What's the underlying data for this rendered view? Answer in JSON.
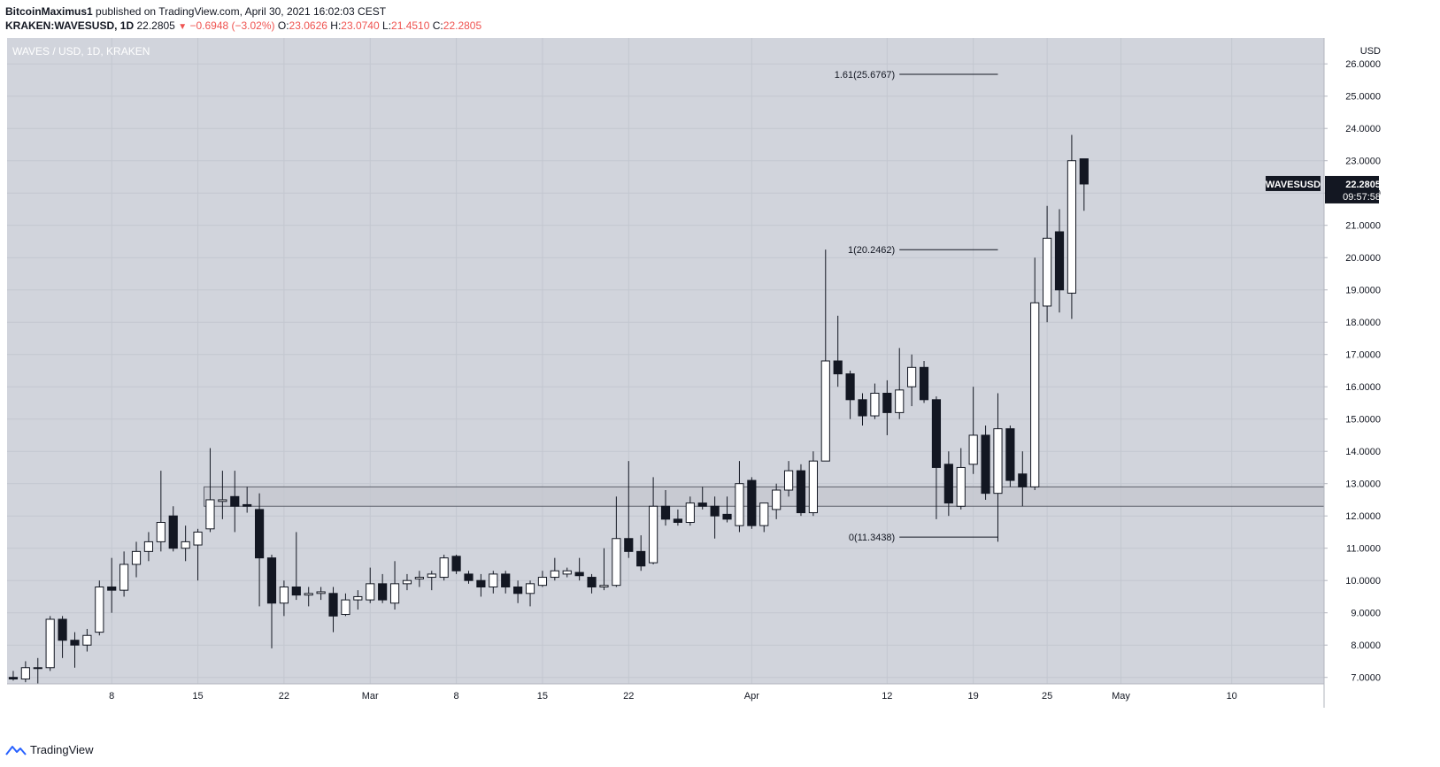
{
  "header": {
    "author": "BitcoinMaximus1",
    "published": "published on TradingView.com, April 30, 2021 16:02:03 CEST",
    "symbol": "KRAKEN:WAVESUSD, 1D",
    "last": "22.2805",
    "change": "−0.6948 (−3.02%)",
    "o_label": "O:",
    "o_value": "23.0626",
    "h_label": "H:",
    "h_value": "23.0740",
    "l_label": "L:",
    "l_value": "21.4510",
    "c_label": "C:",
    "c_value": "22.2805"
  },
  "footer": {
    "brand": "TradingView",
    "icon": "tradingview-logo-icon"
  },
  "colors": {
    "plot_bg": "#d1d4dc",
    "grid": "#c3c7d0",
    "up_body": "#ffffff",
    "down_body": "#131722",
    "wick": "#131722",
    "zone_fill": "#c4c7cf",
    "zone_stroke": "#5d606b",
    "label_bg": "#131722"
  },
  "chart_data": {
    "type": "candlestick",
    "title": "WAVES / USD, 1D, KRAKEN",
    "currency": "USD",
    "price_label": "WAVESUSD",
    "last_price": "22.2805",
    "countdown": "09:57:58",
    "ylim": [
      6.8,
      26.8
    ],
    "y_ticks": [
      7,
      8,
      9,
      10,
      11,
      12,
      13,
      14,
      15,
      16,
      17,
      18,
      19,
      20,
      21,
      22,
      23,
      24,
      25,
      26
    ],
    "y_tick_labels": [
      "7.0000",
      "8.0000",
      "9.0000",
      "10.0000",
      "11.0000",
      "12.0000",
      "13.0000",
      "14.0000",
      "15.0000",
      "16.0000",
      "17.0000",
      "18.0000",
      "19.0000",
      "20.0000",
      "21.0000",
      "22.0000",
      "23.0000",
      "24.0000",
      "25.0000",
      "26.0000"
    ],
    "xlim": [
      "2021-01-31",
      "2021-05-18"
    ],
    "x_ticks": [
      {
        "date": "2021-02-08",
        "label": "8"
      },
      {
        "date": "2021-02-15",
        "label": "15"
      },
      {
        "date": "2021-02-22",
        "label": "22"
      },
      {
        "date": "2021-03-01",
        "label": "Mar"
      },
      {
        "date": "2021-03-08",
        "label": "8"
      },
      {
        "date": "2021-03-15",
        "label": "15"
      },
      {
        "date": "2021-03-22",
        "label": "22"
      },
      {
        "date": "2021-04-01",
        "label": "Apr"
      },
      {
        "date": "2021-04-12",
        "label": "12"
      },
      {
        "date": "2021-04-19",
        "label": "19"
      },
      {
        "date": "2021-04-25",
        "label": "25"
      },
      {
        "date": "2021-05-01",
        "label": "May"
      },
      {
        "date": "2021-05-10",
        "label": "10"
      }
    ],
    "candles": [
      {
        "date": "2021-01-31",
        "open": 7.0,
        "high": 7.2,
        "low": 6.9,
        "close": 6.95
      },
      {
        "date": "2021-02-01",
        "open": 6.95,
        "high": 7.5,
        "low": 6.85,
        "close": 7.3
      },
      {
        "date": "2021-02-02",
        "open": 7.3,
        "high": 7.6,
        "low": 6.8,
        "close": 7.3
      },
      {
        "date": "2021-02-03",
        "open": 7.3,
        "high": 8.9,
        "low": 7.2,
        "close": 8.8
      },
      {
        "date": "2021-02-04",
        "open": 8.8,
        "high": 8.9,
        "low": 7.6,
        "close": 8.15
      },
      {
        "date": "2021-02-05",
        "open": 8.15,
        "high": 8.4,
        "low": 7.3,
        "close": 8.0
      },
      {
        "date": "2021-02-06",
        "open": 8.0,
        "high": 8.5,
        "low": 7.8,
        "close": 8.3
      },
      {
        "date": "2021-02-07",
        "open": 8.4,
        "high": 10.0,
        "low": 8.3,
        "close": 9.8
      },
      {
        "date": "2021-02-08",
        "open": 9.8,
        "high": 10.7,
        "low": 9.0,
        "close": 9.7
      },
      {
        "date": "2021-02-09",
        "open": 9.7,
        "high": 10.9,
        "low": 9.5,
        "close": 10.5
      },
      {
        "date": "2021-02-10",
        "open": 10.5,
        "high": 11.2,
        "low": 10.1,
        "close": 10.9
      },
      {
        "date": "2021-02-11",
        "open": 10.9,
        "high": 11.5,
        "low": 10.6,
        "close": 11.2
      },
      {
        "date": "2021-02-12",
        "open": 11.2,
        "high": 13.4,
        "low": 10.9,
        "close": 11.8
      },
      {
        "date": "2021-02-13",
        "open": 12.0,
        "high": 12.3,
        "low": 10.9,
        "close": 11.0
      },
      {
        "date": "2021-02-14",
        "open": 11.0,
        "high": 11.7,
        "low": 10.6,
        "close": 11.2
      },
      {
        "date": "2021-02-15",
        "open": 11.1,
        "high": 11.6,
        "low": 10.0,
        "close": 11.5
      },
      {
        "date": "2021-02-16",
        "open": 11.6,
        "high": 14.1,
        "low": 11.5,
        "close": 12.5
      },
      {
        "date": "2021-02-17",
        "open": 12.45,
        "high": 13.4,
        "low": 11.9,
        "close": 12.5
      },
      {
        "date": "2021-02-18",
        "open": 12.6,
        "high": 13.4,
        "low": 11.5,
        "close": 12.3
      },
      {
        "date": "2021-02-19",
        "open": 12.35,
        "high": 12.9,
        "low": 12.1,
        "close": 12.3
      },
      {
        "date": "2021-02-20",
        "open": 12.2,
        "high": 12.7,
        "low": 9.2,
        "close": 10.7
      },
      {
        "date": "2021-02-21",
        "open": 10.7,
        "high": 10.8,
        "low": 7.9,
        "close": 9.3
      },
      {
        "date": "2021-02-22",
        "open": 9.3,
        "high": 10.0,
        "low": 8.9,
        "close": 9.8
      },
      {
        "date": "2021-02-23",
        "open": 9.8,
        "high": 11.5,
        "low": 9.4,
        "close": 9.55
      },
      {
        "date": "2021-02-24",
        "open": 9.55,
        "high": 9.8,
        "low": 9.2,
        "close": 9.6
      },
      {
        "date": "2021-02-25",
        "open": 9.6,
        "high": 9.8,
        "low": 9.4,
        "close": 9.65
      },
      {
        "date": "2021-02-26",
        "open": 9.6,
        "high": 9.8,
        "low": 8.4,
        "close": 8.9
      },
      {
        "date": "2021-02-27",
        "open": 8.95,
        "high": 9.6,
        "low": 8.9,
        "close": 9.4
      },
      {
        "date": "2021-02-28",
        "open": 9.4,
        "high": 9.7,
        "low": 9.1,
        "close": 9.5
      },
      {
        "date": "2021-03-01",
        "open": 9.4,
        "high": 10.4,
        "low": 9.3,
        "close": 9.9
      },
      {
        "date": "2021-03-02",
        "open": 9.9,
        "high": 10.2,
        "low": 9.3,
        "close": 9.4
      },
      {
        "date": "2021-03-03",
        "open": 9.3,
        "high": 10.6,
        "low": 9.1,
        "close": 9.9
      },
      {
        "date": "2021-03-04",
        "open": 9.9,
        "high": 10.2,
        "low": 9.7,
        "close": 10.0
      },
      {
        "date": "2021-03-05",
        "open": 10.05,
        "high": 10.3,
        "low": 9.8,
        "close": 10.1
      },
      {
        "date": "2021-03-06",
        "open": 10.1,
        "high": 10.3,
        "low": 9.7,
        "close": 10.2
      },
      {
        "date": "2021-03-07",
        "open": 10.1,
        "high": 10.8,
        "low": 10.0,
        "close": 10.7
      },
      {
        "date": "2021-03-08",
        "open": 10.75,
        "high": 10.8,
        "low": 10.2,
        "close": 10.3
      },
      {
        "date": "2021-03-09",
        "open": 10.2,
        "high": 10.3,
        "low": 9.9,
        "close": 10.0
      },
      {
        "date": "2021-03-10",
        "open": 10.0,
        "high": 10.2,
        "low": 9.5,
        "close": 9.8
      },
      {
        "date": "2021-03-11",
        "open": 9.8,
        "high": 10.3,
        "low": 9.6,
        "close": 10.2
      },
      {
        "date": "2021-03-12",
        "open": 10.2,
        "high": 10.3,
        "low": 9.6,
        "close": 9.8
      },
      {
        "date": "2021-03-13",
        "open": 9.8,
        "high": 10.0,
        "low": 9.3,
        "close": 9.6
      },
      {
        "date": "2021-03-14",
        "open": 9.6,
        "high": 10.0,
        "low": 9.2,
        "close": 9.9
      },
      {
        "date": "2021-03-15",
        "open": 9.85,
        "high": 10.3,
        "low": 9.8,
        "close": 10.1
      },
      {
        "date": "2021-03-16",
        "open": 10.1,
        "high": 10.7,
        "low": 10.0,
        "close": 10.3
      },
      {
        "date": "2021-03-17",
        "open": 10.2,
        "high": 10.4,
        "low": 10.1,
        "close": 10.3
      },
      {
        "date": "2021-03-18",
        "open": 10.25,
        "high": 10.7,
        "low": 10.0,
        "close": 10.15
      },
      {
        "date": "2021-03-19",
        "open": 10.1,
        "high": 10.2,
        "low": 9.6,
        "close": 9.8
      },
      {
        "date": "2021-03-20",
        "open": 9.8,
        "high": 11.0,
        "low": 9.7,
        "close": 9.85
      },
      {
        "date": "2021-03-21",
        "open": 9.85,
        "high": 12.6,
        "low": 9.8,
        "close": 11.3
      },
      {
        "date": "2021-03-22",
        "open": 11.3,
        "high": 13.7,
        "low": 10.7,
        "close": 10.9
      },
      {
        "date": "2021-03-23",
        "open": 10.9,
        "high": 11.4,
        "low": 10.3,
        "close": 10.45
      },
      {
        "date": "2021-03-24",
        "open": 10.55,
        "high": 13.2,
        "low": 10.5,
        "close": 12.3
      },
      {
        "date": "2021-03-25",
        "open": 12.3,
        "high": 12.8,
        "low": 11.7,
        "close": 11.9
      },
      {
        "date": "2021-03-26",
        "open": 11.9,
        "high": 12.2,
        "low": 11.7,
        "close": 11.8
      },
      {
        "date": "2021-03-27",
        "open": 11.8,
        "high": 12.6,
        "low": 11.7,
        "close": 12.4
      },
      {
        "date": "2021-03-28",
        "open": 12.4,
        "high": 12.9,
        "low": 12.2,
        "close": 12.3
      },
      {
        "date": "2021-03-29",
        "open": 12.3,
        "high": 12.6,
        "low": 11.3,
        "close": 12.0
      },
      {
        "date": "2021-03-30",
        "open": 12.05,
        "high": 12.6,
        "low": 11.8,
        "close": 11.9
      },
      {
        "date": "2021-03-31",
        "open": 11.7,
        "high": 13.7,
        "low": 11.5,
        "close": 13.0
      },
      {
        "date": "2021-04-01",
        "open": 13.1,
        "high": 13.2,
        "low": 11.6,
        "close": 11.7
      },
      {
        "date": "2021-04-02",
        "open": 11.7,
        "high": 12.4,
        "low": 11.5,
        "close": 12.4
      },
      {
        "date": "2021-04-03",
        "open": 12.2,
        "high": 13.0,
        "low": 11.9,
        "close": 12.8
      },
      {
        "date": "2021-04-04",
        "open": 12.8,
        "high": 13.7,
        "low": 12.6,
        "close": 13.4
      },
      {
        "date": "2021-04-05",
        "open": 13.4,
        "high": 13.6,
        "low": 12.0,
        "close": 12.1
      },
      {
        "date": "2021-04-06",
        "open": 12.1,
        "high": 14.0,
        "low": 12.0,
        "close": 13.7
      },
      {
        "date": "2021-04-07",
        "open": 13.7,
        "high": 20.25,
        "low": 13.7,
        "close": 16.8
      },
      {
        "date": "2021-04-08",
        "open": 16.8,
        "high": 18.2,
        "low": 16.0,
        "close": 16.4
      },
      {
        "date": "2021-04-09",
        "open": 16.4,
        "high": 16.5,
        "low": 15.0,
        "close": 15.6
      },
      {
        "date": "2021-04-10",
        "open": 15.6,
        "high": 15.8,
        "low": 14.8,
        "close": 15.1
      },
      {
        "date": "2021-04-11",
        "open": 15.1,
        "high": 16.1,
        "low": 15.0,
        "close": 15.8
      },
      {
        "date": "2021-04-12",
        "open": 15.8,
        "high": 16.2,
        "low": 14.5,
        "close": 15.2
      },
      {
        "date": "2021-04-13",
        "open": 15.2,
        "high": 17.2,
        "low": 15.0,
        "close": 15.9
      },
      {
        "date": "2021-04-14",
        "open": 16.0,
        "high": 17.0,
        "low": 15.4,
        "close": 16.6
      },
      {
        "date": "2021-04-15",
        "open": 16.6,
        "high": 16.8,
        "low": 15.5,
        "close": 15.6
      },
      {
        "date": "2021-04-16",
        "open": 15.6,
        "high": 15.7,
        "low": 11.9,
        "close": 13.5
      },
      {
        "date": "2021-04-17",
        "open": 13.6,
        "high": 14.0,
        "low": 12.0,
        "close": 12.4
      },
      {
        "date": "2021-04-18",
        "open": 12.3,
        "high": 14.1,
        "low": 12.2,
        "close": 13.5
      },
      {
        "date": "2021-04-19",
        "open": 13.6,
        "high": 16.0,
        "low": 13.3,
        "close": 14.5
      },
      {
        "date": "2021-04-20",
        "open": 14.5,
        "high": 14.8,
        "low": 12.5,
        "close": 12.7
      },
      {
        "date": "2021-04-21",
        "open": 12.7,
        "high": 15.8,
        "low": 11.2,
        "close": 14.7
      },
      {
        "date": "2021-04-22",
        "open": 14.7,
        "high": 14.8,
        "low": 12.9,
        "close": 13.1
      },
      {
        "date": "2021-04-23",
        "open": 13.3,
        "high": 14.0,
        "low": 12.3,
        "close": 12.9
      },
      {
        "date": "2021-04-24",
        "open": 12.9,
        "high": 20.0,
        "low": 12.8,
        "close": 18.6
      },
      {
        "date": "2021-04-25",
        "open": 18.5,
        "high": 21.6,
        "low": 18.0,
        "close": 20.6
      },
      {
        "date": "2021-04-26",
        "open": 20.8,
        "high": 21.5,
        "low": 18.3,
        "close": 19.0
      },
      {
        "date": "2021-04-27",
        "open": 18.9,
        "high": 23.8,
        "low": 18.1,
        "close": 23.0
      },
      {
        "date": "2021-04-28",
        "open": 23.06,
        "high": 23.07,
        "low": 21.45,
        "close": 22.28
      }
    ],
    "support_zone": {
      "x_start": "2021-02-16",
      "x_end": "2021-05-18",
      "low": 12.3,
      "high": 12.9
    },
    "fib_levels": [
      {
        "ratio": "1.61",
        "value": 25.6767,
        "label": "1.61(25.6767)",
        "x_start": "2021-04-13",
        "x_end": "2021-04-21"
      },
      {
        "ratio": "1",
        "value": 20.2462,
        "label": "1(20.2462)",
        "x_start": "2021-04-13",
        "x_end": "2021-04-21"
      },
      {
        "ratio": "0",
        "value": 11.3438,
        "label": "0(11.3438)",
        "x_start": "2021-04-13",
        "x_end": "2021-04-21"
      }
    ]
  }
}
